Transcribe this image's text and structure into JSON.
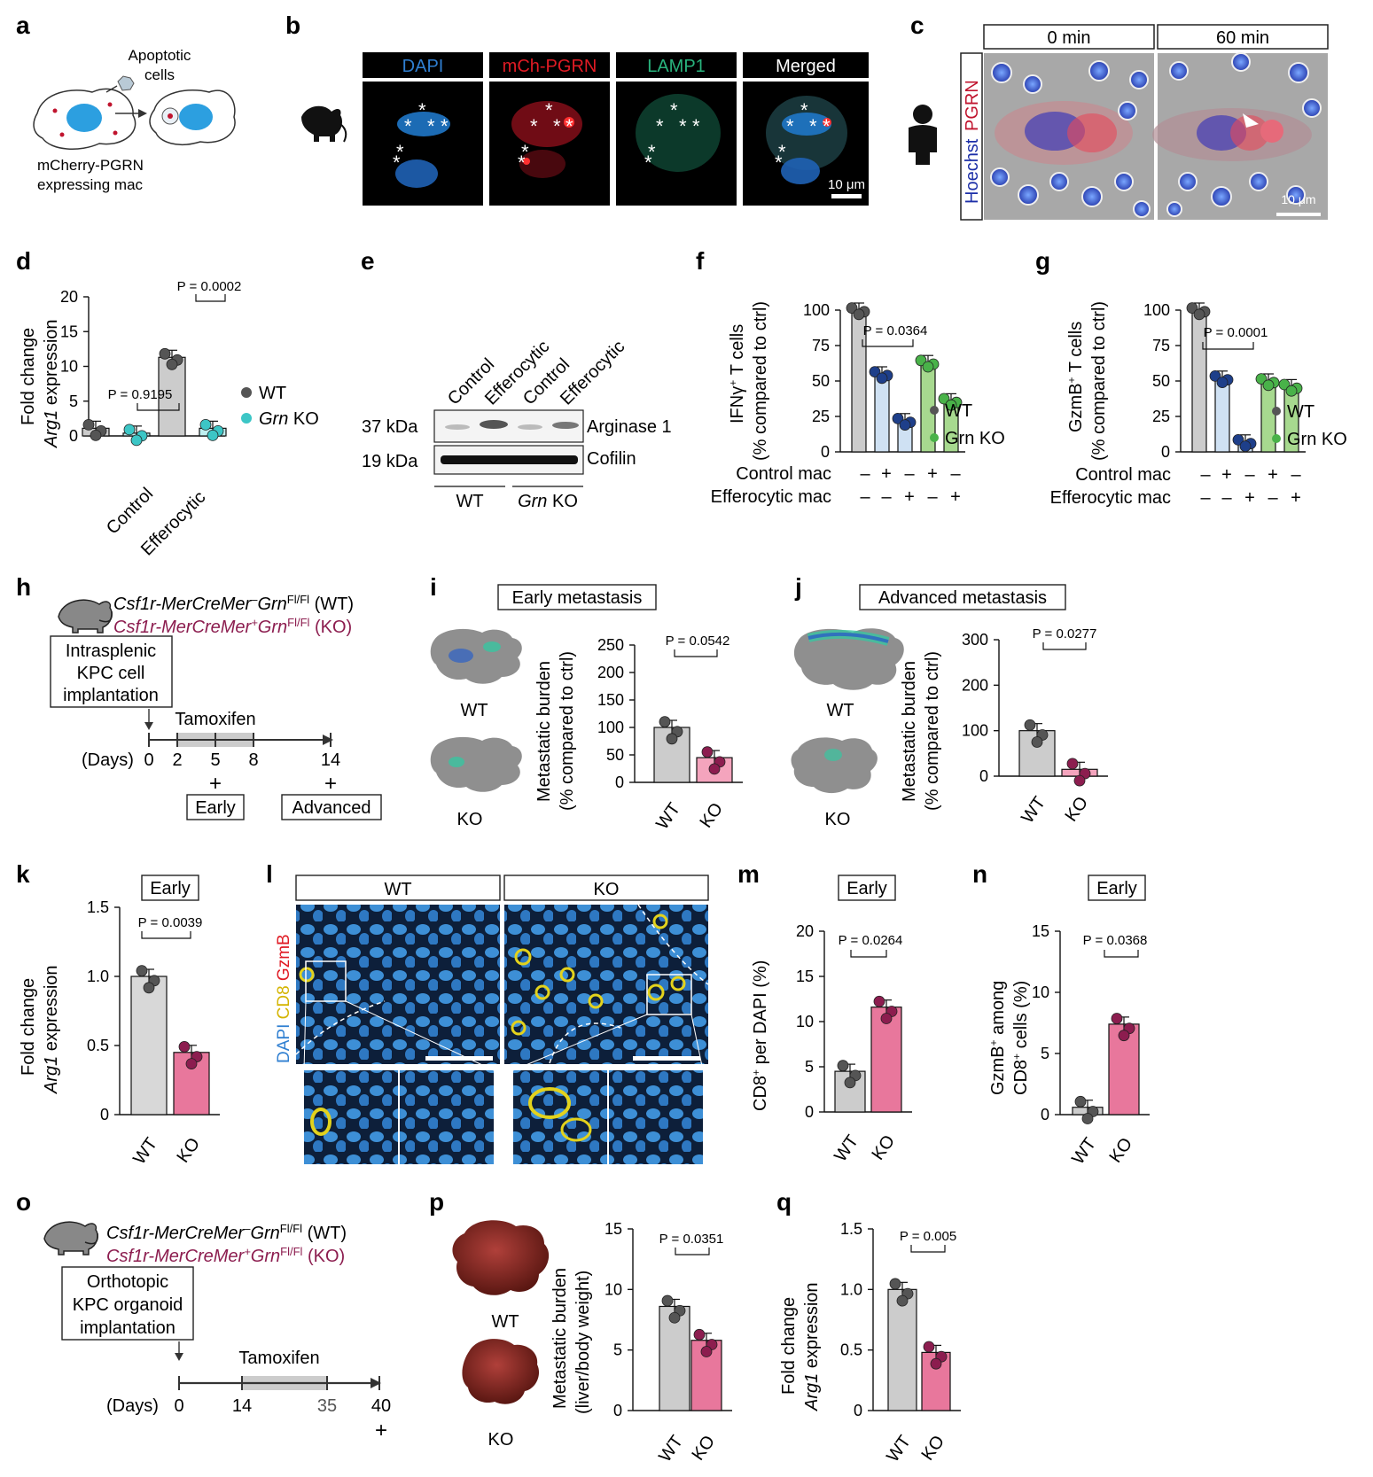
{
  "panel_letters": [
    "a",
    "b",
    "c",
    "d",
    "e",
    "f",
    "g",
    "h",
    "i",
    "j",
    "k",
    "l",
    "m",
    "n",
    "o",
    "p",
    "q"
  ],
  "a": {
    "apoptotic_line1": "Apoptotic",
    "apoptotic_line2": "cells",
    "caption_line1": "mCherry-PGRN",
    "caption_line2": "expressing mac"
  },
  "b": {
    "channels": [
      "DAPI",
      "mCh-PGRN",
      "LAMP1",
      "Merged"
    ],
    "scale": "10 μm",
    "channel_colors": [
      "#2f7fd1",
      "#e01b24",
      "#29b37d",
      "#ffffff"
    ]
  },
  "c": {
    "times": [
      "0 min",
      "60 min"
    ],
    "side_label_1": "Hoechst",
    "side_label_2": "PGRN",
    "scale": "10 μm"
  },
  "d": {
    "ylabel_1": "Fold change",
    "ylabel_2": "Arg1",
    "ylabel_3": "expression",
    "legend_wt": "WT",
    "legend_ko_1": "Grn",
    "legend_ko_2": "KO",
    "p1": "P = 0.9195",
    "p2": "P = 0.0002",
    "groups": [
      "Control",
      "Efferocytic"
    ]
  },
  "e": {
    "cols": [
      "Control",
      "Efferocytic",
      "Control",
      "Efferocytic"
    ],
    "kda1": "37 kDa",
    "kda2": "19 kDa",
    "band1": "Arginase 1",
    "band2": "Cofilin",
    "geno_wt": "WT",
    "geno_ko_1": "Grn",
    "geno_ko_2": "KO"
  },
  "f": {
    "ylabel_1": "IFNγ",
    "ylabel_sup": "+",
    "ylabel_2": "T cells",
    "ylabel_3": "(% compared to ctrl)",
    "p": "P = 0.0364",
    "legend_wt": "WT",
    "legend_ko": "Grn KO",
    "row1": "Control mac",
    "row2": "Efferocytic mac",
    "row1_signs": [
      "–",
      "+",
      "–",
      "+",
      "–"
    ],
    "row2_signs": [
      "–",
      "–",
      "+",
      "–",
      "+"
    ]
  },
  "g": {
    "ylabel_1": "GzmB",
    "ylabel_sup": "+",
    "ylabel_2": "T cells",
    "ylabel_3": "(% compared to ctrl)",
    "p": "P = 0.0001",
    "legend_wt": "WT",
    "legend_ko": "Grn KO",
    "row1": "Control mac",
    "row2": "Efferocytic mac",
    "row1_signs": [
      "–",
      "+",
      "–",
      "+",
      "–"
    ],
    "row2_signs": [
      "–",
      "–",
      "+",
      "–",
      "+"
    ]
  },
  "h": {
    "line1_a": "Csf1r-MerCreMer",
    "line1_sup1": "–",
    "line1_b": "Grn",
    "line1_sup2": "Fl/Fl",
    "line1_c": " (WT)",
    "line2_a": "Csf1r-MerCreMer",
    "line2_sup1": "+",
    "line2_b": "Grn",
    "line2_sup2": "Fl/Fl",
    "line2_c": " (KO)",
    "box_1": "Intrasplenic",
    "box_2": "KPC cell",
    "box_3": "implantation",
    "tamoxifen": "Tamoxifen",
    "days_label": "(Days)",
    "days": [
      "0",
      "2",
      "5",
      "8",
      "14"
    ],
    "early": "Early",
    "advanced": "Advanced",
    "cross": "+"
  },
  "i": {
    "title": "Early metastasis",
    "wt": "WT",
    "ko": "KO",
    "ylabel_1": "Metastatic burden",
    "ylabel_2": "(% compared to ctrl)",
    "p": "P = 0.0542"
  },
  "j": {
    "title": "Advanced metastasis",
    "wt": "WT",
    "ko": "KO",
    "ylabel_1": "Metastatic burden",
    "ylabel_2": "(% compared to ctrl)",
    "p": "P = 0.0277"
  },
  "k": {
    "title": "Early",
    "ylabel_1": "Fold change",
    "ylabel_2": "Arg1",
    "ylabel_3": "expression",
    "p": "P = 0.0039"
  },
  "l": {
    "wt": "WT",
    "ko": "KO",
    "side_1": "DAPI",
    "side_2": "CD8",
    "side_3": "GzmB"
  },
  "m": {
    "title": "Early",
    "ylabel_1": "CD8",
    "ylabel_sup": "+",
    "ylabel_2": "per DAPI (%)",
    "p": "P = 0.0264"
  },
  "n": {
    "title": "Early",
    "ylabel_1": "GzmB",
    "ylabel_sup": "+",
    "ylabel_2": "among",
    "ylabel_3": "CD8",
    "ylabel_sup2": "+",
    "ylabel_4": "cells (%)",
    "p": "P = 0.0368"
  },
  "o": {
    "line1_a": "Csf1r-MerCreMer",
    "line1_sup1": "–",
    "line1_b": "Grn",
    "line1_sup2": "Fl/Fl",
    "line1_c": " (WT)",
    "line2_a": "Csf1r-MerCreMer",
    "line2_sup1": "+",
    "line2_b": "Grn",
    "line2_sup2": "Fl/Fl",
    "line2_c": " (KO)",
    "box_1": "Orthotopic",
    "box_2": "KPC organoid",
    "box_3": "implantation",
    "tamoxifen": "Tamoxifen",
    "days_label": "(Days)",
    "days": [
      "0",
      "14",
      "35",
      "40"
    ],
    "cross": "+"
  },
  "p": {
    "wt": "WT",
    "ko": "KO",
    "ylabel_1": "Metastatic burden",
    "ylabel_2": "(liver/body weight)",
    "p": "P = 0.0351"
  },
  "q": {
    "ylabel_1": "Fold change",
    "ylabel_2": "Arg1",
    "ylabel_3": "expression",
    "p": "P = 0.005"
  },
  "colors": {
    "wt_dot": "#555555",
    "ko_pink": "#e8779c",
    "ko_magenta": "#8c1d4f",
    "teal": "#3cc6c6",
    "green": "#7cc26a",
    "navy": "#1e3f8a",
    "lightblue": "#cfe1f3",
    "grey_bar": "#cccccc",
    "accent_red": "#c0142e"
  },
  "chart_data": [
    {
      "panel": "d",
      "type": "bar",
      "categories": [
        "Control",
        "Efferocytic"
      ],
      "series": [
        {
          "name": "WT",
          "values": [
            1.1,
            11.3
          ]
        },
        {
          "name": "Grn KO",
          "values": [
            0.4,
            1.1
          ]
        }
      ],
      "ylim": [
        0,
        20
      ],
      "yticks": [
        0,
        5,
        10,
        15,
        20
      ]
    },
    {
      "panel": "f",
      "type": "bar",
      "categories": [
        "1",
        "2",
        "3",
        "4",
        "5"
      ],
      "values": [
        100,
        55,
        22,
        63,
        36
      ],
      "ylim": [
        0,
        100
      ],
      "yticks": [
        0,
        25,
        50,
        75,
        100
      ]
    },
    {
      "panel": "g",
      "type": "bar",
      "categories": [
        "1",
        "2",
        "3",
        "4",
        "5"
      ],
      "values": [
        100,
        52,
        7,
        50,
        46
      ],
      "ylim": [
        0,
        100
      ],
      "yticks": [
        0,
        25,
        50,
        75,
        100
      ]
    },
    {
      "panel": "i",
      "type": "bar",
      "categories": [
        "WT",
        "KO"
      ],
      "values": [
        100,
        45
      ],
      "ylim": [
        0,
        250
      ],
      "yticks": [
        0,
        50,
        100,
        150,
        200,
        250
      ]
    },
    {
      "panel": "j",
      "type": "bar",
      "categories": [
        "WT",
        "KO"
      ],
      "values": [
        100,
        15
      ],
      "ylim": [
        0,
        300
      ],
      "yticks": [
        0,
        100,
        200,
        300
      ]
    },
    {
      "panel": "k",
      "type": "bar",
      "categories": [
        "WT",
        "KO"
      ],
      "values": [
        1.0,
        0.45
      ],
      "ylim": [
        0,
        1.5
      ],
      "yticks": [
        "0",
        "0.5",
        "1.0",
        "1.5"
      ]
    },
    {
      "panel": "m",
      "type": "bar",
      "categories": [
        "WT",
        "KO"
      ],
      "values": [
        4.5,
        11.6
      ],
      "ylim": [
        0,
        20
      ],
      "yticks": [
        0,
        5,
        10,
        15,
        20
      ]
    },
    {
      "panel": "n",
      "type": "bar",
      "categories": [
        "WT",
        "KO"
      ],
      "values": [
        0.6,
        7.4
      ],
      "ylim": [
        0,
        15
      ],
      "yticks": [
        0,
        5,
        10,
        15
      ]
    },
    {
      "panel": "p",
      "type": "bar",
      "categories": [
        "WT",
        "KO"
      ],
      "values": [
        8.6,
        5.8
      ],
      "ylim": [
        0,
        15
      ],
      "yticks": [
        0,
        5,
        10,
        15
      ]
    },
    {
      "panel": "q",
      "type": "bar",
      "categories": [
        "WT",
        "KO"
      ],
      "values": [
        1.0,
        0.48
      ],
      "ylim": [
        0,
        1.5
      ],
      "yticks": [
        "0",
        "0.5",
        "1.0",
        "1.5"
      ]
    }
  ]
}
